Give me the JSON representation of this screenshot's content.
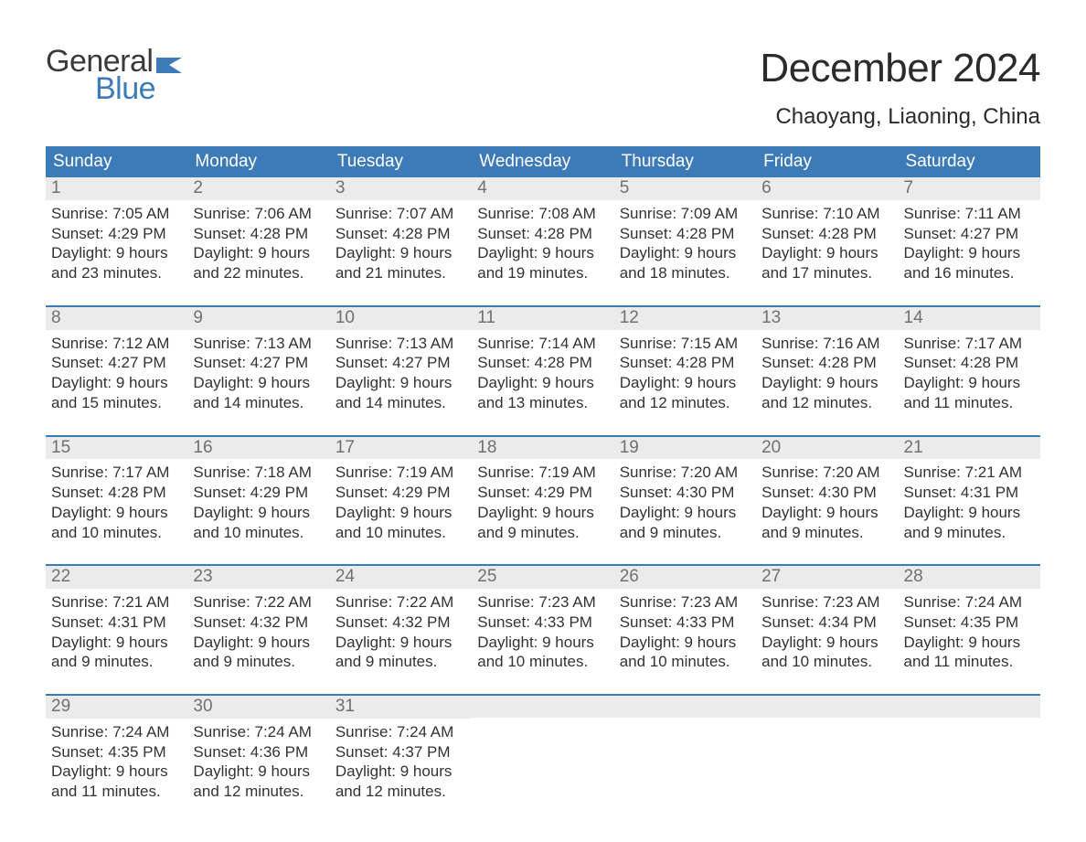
{
  "logo": {
    "text_general": "General",
    "text_blue": "Blue",
    "color_dark": "#3a3a3a",
    "color_blue": "#3c7ab8",
    "flag_color": "#3c7ab8"
  },
  "header": {
    "month_title": "December 2024",
    "location": "Chaoyang, Liaoning, China"
  },
  "styling": {
    "page_bg": "#ffffff",
    "header_row_bg": "#3c7ab8",
    "header_row_text": "#ffffff",
    "day_num_bg": "#ebebeb",
    "day_num_text": "#707070",
    "body_text": "#333333",
    "week_border_color": "#3c7ab8",
    "title_fontsize": 44,
    "location_fontsize": 24,
    "weekday_fontsize": 19,
    "daynum_fontsize": 19,
    "body_fontsize": 17
  },
  "weekdays": [
    "Sunday",
    "Monday",
    "Tuesday",
    "Wednesday",
    "Thursday",
    "Friday",
    "Saturday"
  ],
  "weeks": [
    [
      {
        "num": "1",
        "sunrise": "Sunrise: 7:05 AM",
        "sunset": "Sunset: 4:29 PM",
        "dayl1": "Daylight: 9 hours",
        "dayl2": "and 23 minutes."
      },
      {
        "num": "2",
        "sunrise": "Sunrise: 7:06 AM",
        "sunset": "Sunset: 4:28 PM",
        "dayl1": "Daylight: 9 hours",
        "dayl2": "and 22 minutes."
      },
      {
        "num": "3",
        "sunrise": "Sunrise: 7:07 AM",
        "sunset": "Sunset: 4:28 PM",
        "dayl1": "Daylight: 9 hours",
        "dayl2": "and 21 minutes."
      },
      {
        "num": "4",
        "sunrise": "Sunrise: 7:08 AM",
        "sunset": "Sunset: 4:28 PM",
        "dayl1": "Daylight: 9 hours",
        "dayl2": "and 19 minutes."
      },
      {
        "num": "5",
        "sunrise": "Sunrise: 7:09 AM",
        "sunset": "Sunset: 4:28 PM",
        "dayl1": "Daylight: 9 hours",
        "dayl2": "and 18 minutes."
      },
      {
        "num": "6",
        "sunrise": "Sunrise: 7:10 AM",
        "sunset": "Sunset: 4:28 PM",
        "dayl1": "Daylight: 9 hours",
        "dayl2": "and 17 minutes."
      },
      {
        "num": "7",
        "sunrise": "Sunrise: 7:11 AM",
        "sunset": "Sunset: 4:27 PM",
        "dayl1": "Daylight: 9 hours",
        "dayl2": "and 16 minutes."
      }
    ],
    [
      {
        "num": "8",
        "sunrise": "Sunrise: 7:12 AM",
        "sunset": "Sunset: 4:27 PM",
        "dayl1": "Daylight: 9 hours",
        "dayl2": "and 15 minutes."
      },
      {
        "num": "9",
        "sunrise": "Sunrise: 7:13 AM",
        "sunset": "Sunset: 4:27 PM",
        "dayl1": "Daylight: 9 hours",
        "dayl2": "and 14 minutes."
      },
      {
        "num": "10",
        "sunrise": "Sunrise: 7:13 AM",
        "sunset": "Sunset: 4:27 PM",
        "dayl1": "Daylight: 9 hours",
        "dayl2": "and 14 minutes."
      },
      {
        "num": "11",
        "sunrise": "Sunrise: 7:14 AM",
        "sunset": "Sunset: 4:28 PM",
        "dayl1": "Daylight: 9 hours",
        "dayl2": "and 13 minutes."
      },
      {
        "num": "12",
        "sunrise": "Sunrise: 7:15 AM",
        "sunset": "Sunset: 4:28 PM",
        "dayl1": "Daylight: 9 hours",
        "dayl2": "and 12 minutes."
      },
      {
        "num": "13",
        "sunrise": "Sunrise: 7:16 AM",
        "sunset": "Sunset: 4:28 PM",
        "dayl1": "Daylight: 9 hours",
        "dayl2": "and 12 minutes."
      },
      {
        "num": "14",
        "sunrise": "Sunrise: 7:17 AM",
        "sunset": "Sunset: 4:28 PM",
        "dayl1": "Daylight: 9 hours",
        "dayl2": "and 11 minutes."
      }
    ],
    [
      {
        "num": "15",
        "sunrise": "Sunrise: 7:17 AM",
        "sunset": "Sunset: 4:28 PM",
        "dayl1": "Daylight: 9 hours",
        "dayl2": "and 10 minutes."
      },
      {
        "num": "16",
        "sunrise": "Sunrise: 7:18 AM",
        "sunset": "Sunset: 4:29 PM",
        "dayl1": "Daylight: 9 hours",
        "dayl2": "and 10 minutes."
      },
      {
        "num": "17",
        "sunrise": "Sunrise: 7:19 AM",
        "sunset": "Sunset: 4:29 PM",
        "dayl1": "Daylight: 9 hours",
        "dayl2": "and 10 minutes."
      },
      {
        "num": "18",
        "sunrise": "Sunrise: 7:19 AM",
        "sunset": "Sunset: 4:29 PM",
        "dayl1": "Daylight: 9 hours",
        "dayl2": "and 9 minutes."
      },
      {
        "num": "19",
        "sunrise": "Sunrise: 7:20 AM",
        "sunset": "Sunset: 4:30 PM",
        "dayl1": "Daylight: 9 hours",
        "dayl2": "and 9 minutes."
      },
      {
        "num": "20",
        "sunrise": "Sunrise: 7:20 AM",
        "sunset": "Sunset: 4:30 PM",
        "dayl1": "Daylight: 9 hours",
        "dayl2": "and 9 minutes."
      },
      {
        "num": "21",
        "sunrise": "Sunrise: 7:21 AM",
        "sunset": "Sunset: 4:31 PM",
        "dayl1": "Daylight: 9 hours",
        "dayl2": "and 9 minutes."
      }
    ],
    [
      {
        "num": "22",
        "sunrise": "Sunrise: 7:21 AM",
        "sunset": "Sunset: 4:31 PM",
        "dayl1": "Daylight: 9 hours",
        "dayl2": "and 9 minutes."
      },
      {
        "num": "23",
        "sunrise": "Sunrise: 7:22 AM",
        "sunset": "Sunset: 4:32 PM",
        "dayl1": "Daylight: 9 hours",
        "dayl2": "and 9 minutes."
      },
      {
        "num": "24",
        "sunrise": "Sunrise: 7:22 AM",
        "sunset": "Sunset: 4:32 PM",
        "dayl1": "Daylight: 9 hours",
        "dayl2": "and 9 minutes."
      },
      {
        "num": "25",
        "sunrise": "Sunrise: 7:23 AM",
        "sunset": "Sunset: 4:33 PM",
        "dayl1": "Daylight: 9 hours",
        "dayl2": "and 10 minutes."
      },
      {
        "num": "26",
        "sunrise": "Sunrise: 7:23 AM",
        "sunset": "Sunset: 4:33 PM",
        "dayl1": "Daylight: 9 hours",
        "dayl2": "and 10 minutes."
      },
      {
        "num": "27",
        "sunrise": "Sunrise: 7:23 AM",
        "sunset": "Sunset: 4:34 PM",
        "dayl1": "Daylight: 9 hours",
        "dayl2": "and 10 minutes."
      },
      {
        "num": "28",
        "sunrise": "Sunrise: 7:24 AM",
        "sunset": "Sunset: 4:35 PM",
        "dayl1": "Daylight: 9 hours",
        "dayl2": "and 11 minutes."
      }
    ],
    [
      {
        "num": "29",
        "sunrise": "Sunrise: 7:24 AM",
        "sunset": "Sunset: 4:35 PM",
        "dayl1": "Daylight: 9 hours",
        "dayl2": "and 11 minutes."
      },
      {
        "num": "30",
        "sunrise": "Sunrise: 7:24 AM",
        "sunset": "Sunset: 4:36 PM",
        "dayl1": "Daylight: 9 hours",
        "dayl2": "and 12 minutes."
      },
      {
        "num": "31",
        "sunrise": "Sunrise: 7:24 AM",
        "sunset": "Sunset: 4:37 PM",
        "dayl1": "Daylight: 9 hours",
        "dayl2": "and 12 minutes."
      },
      null,
      null,
      null,
      null
    ]
  ]
}
